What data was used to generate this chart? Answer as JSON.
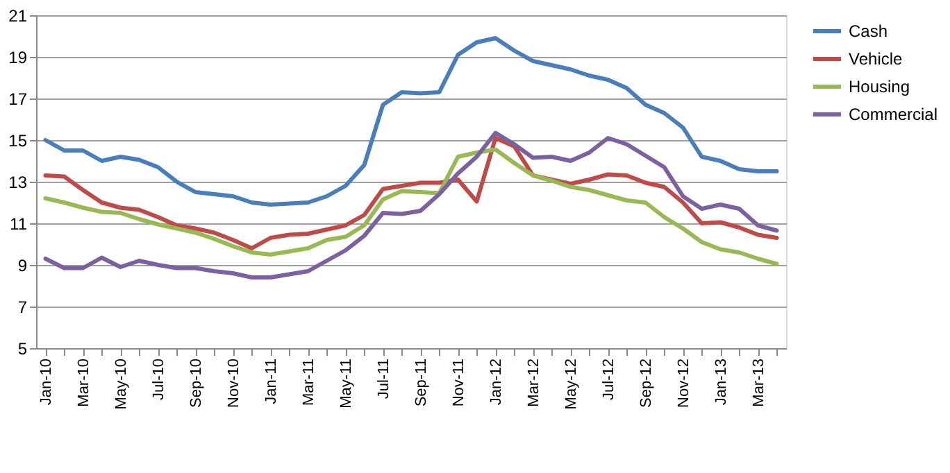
{
  "chart_data": {
    "type": "line",
    "categories": [
      "Jan-10",
      null,
      "Mar-10",
      null,
      "May-10",
      null,
      "Jul-10",
      null,
      "Sep-10",
      null,
      "Nov-10",
      null,
      "Jan-11",
      null,
      "Mar-11",
      null,
      "May-11",
      null,
      "Jul-11",
      null,
      "Sep-11",
      null,
      "Nov-11",
      null,
      "Jan-12",
      null,
      "Mar-12",
      null,
      "May-12",
      null,
      "Jul-12",
      null,
      "Sep-12",
      null,
      "Nov-12",
      null,
      "Jan-13",
      null,
      "Mar-13",
      null
    ],
    "series": [
      {
        "name": "Cash",
        "color": "#4a7ebb",
        "values": [
          15.0,
          14.5,
          14.5,
          14.0,
          14.2,
          14.05,
          13.7,
          13.0,
          12.5,
          12.4,
          12.3,
          12.0,
          11.9,
          11.95,
          12.0,
          12.3,
          12.8,
          13.8,
          16.7,
          17.3,
          17.25,
          17.3,
          19.1,
          19.7,
          19.9,
          19.3,
          18.8,
          18.6,
          18.4,
          18.1,
          17.9,
          17.5,
          16.7,
          16.3,
          15.6,
          14.2,
          14.0,
          13.6,
          13.5,
          13.5
        ]
      },
      {
        "name": "Vehicle",
        "color": "#be4b48",
        "values": [
          13.3,
          13.25,
          12.6,
          12.0,
          11.75,
          11.65,
          11.3,
          10.9,
          10.75,
          10.55,
          10.2,
          9.8,
          10.3,
          10.45,
          10.5,
          10.7,
          10.9,
          11.4,
          12.65,
          12.8,
          12.95,
          12.95,
          13.1,
          12.05,
          15.1,
          14.7,
          13.3,
          13.1,
          12.9,
          13.1,
          13.35,
          13.3,
          12.95,
          12.75,
          12.0,
          11.0,
          11.05,
          10.8,
          10.45,
          10.3
        ]
      },
      {
        "name": "Housing",
        "color": "#98b954",
        "values": [
          12.2,
          12.0,
          11.75,
          11.55,
          11.5,
          11.2,
          10.95,
          10.75,
          10.55,
          10.25,
          9.9,
          9.6,
          9.5,
          9.65,
          9.8,
          10.2,
          10.35,
          10.9,
          12.15,
          12.55,
          12.5,
          12.45,
          14.2,
          14.4,
          14.55,
          13.9,
          13.3,
          13.05,
          12.75,
          12.6,
          12.35,
          12.1,
          12.0,
          11.3,
          10.75,
          10.1,
          9.75,
          9.6,
          9.3,
          9.05
        ]
      },
      {
        "name": "Commercial",
        "color": "#7d60a0",
        "values": [
          9.3,
          8.85,
          8.85,
          9.35,
          8.9,
          9.2,
          9.0,
          8.85,
          8.85,
          8.7,
          8.6,
          8.4,
          8.4,
          8.55,
          8.7,
          9.2,
          9.7,
          10.4,
          11.5,
          11.45,
          11.6,
          12.4,
          13.4,
          14.2,
          15.35,
          14.8,
          14.15,
          14.2,
          14.0,
          14.4,
          15.1,
          14.8,
          14.25,
          13.7,
          12.3,
          11.7,
          11.9,
          11.7,
          10.9,
          10.65
        ]
      }
    ],
    "ylim": [
      5,
      21
    ],
    "yticks": [
      5,
      7,
      9,
      11,
      13,
      15,
      17,
      19,
      21
    ],
    "grid": "y",
    "legend": "right",
    "line_style": "solid",
    "marker": "none"
  }
}
